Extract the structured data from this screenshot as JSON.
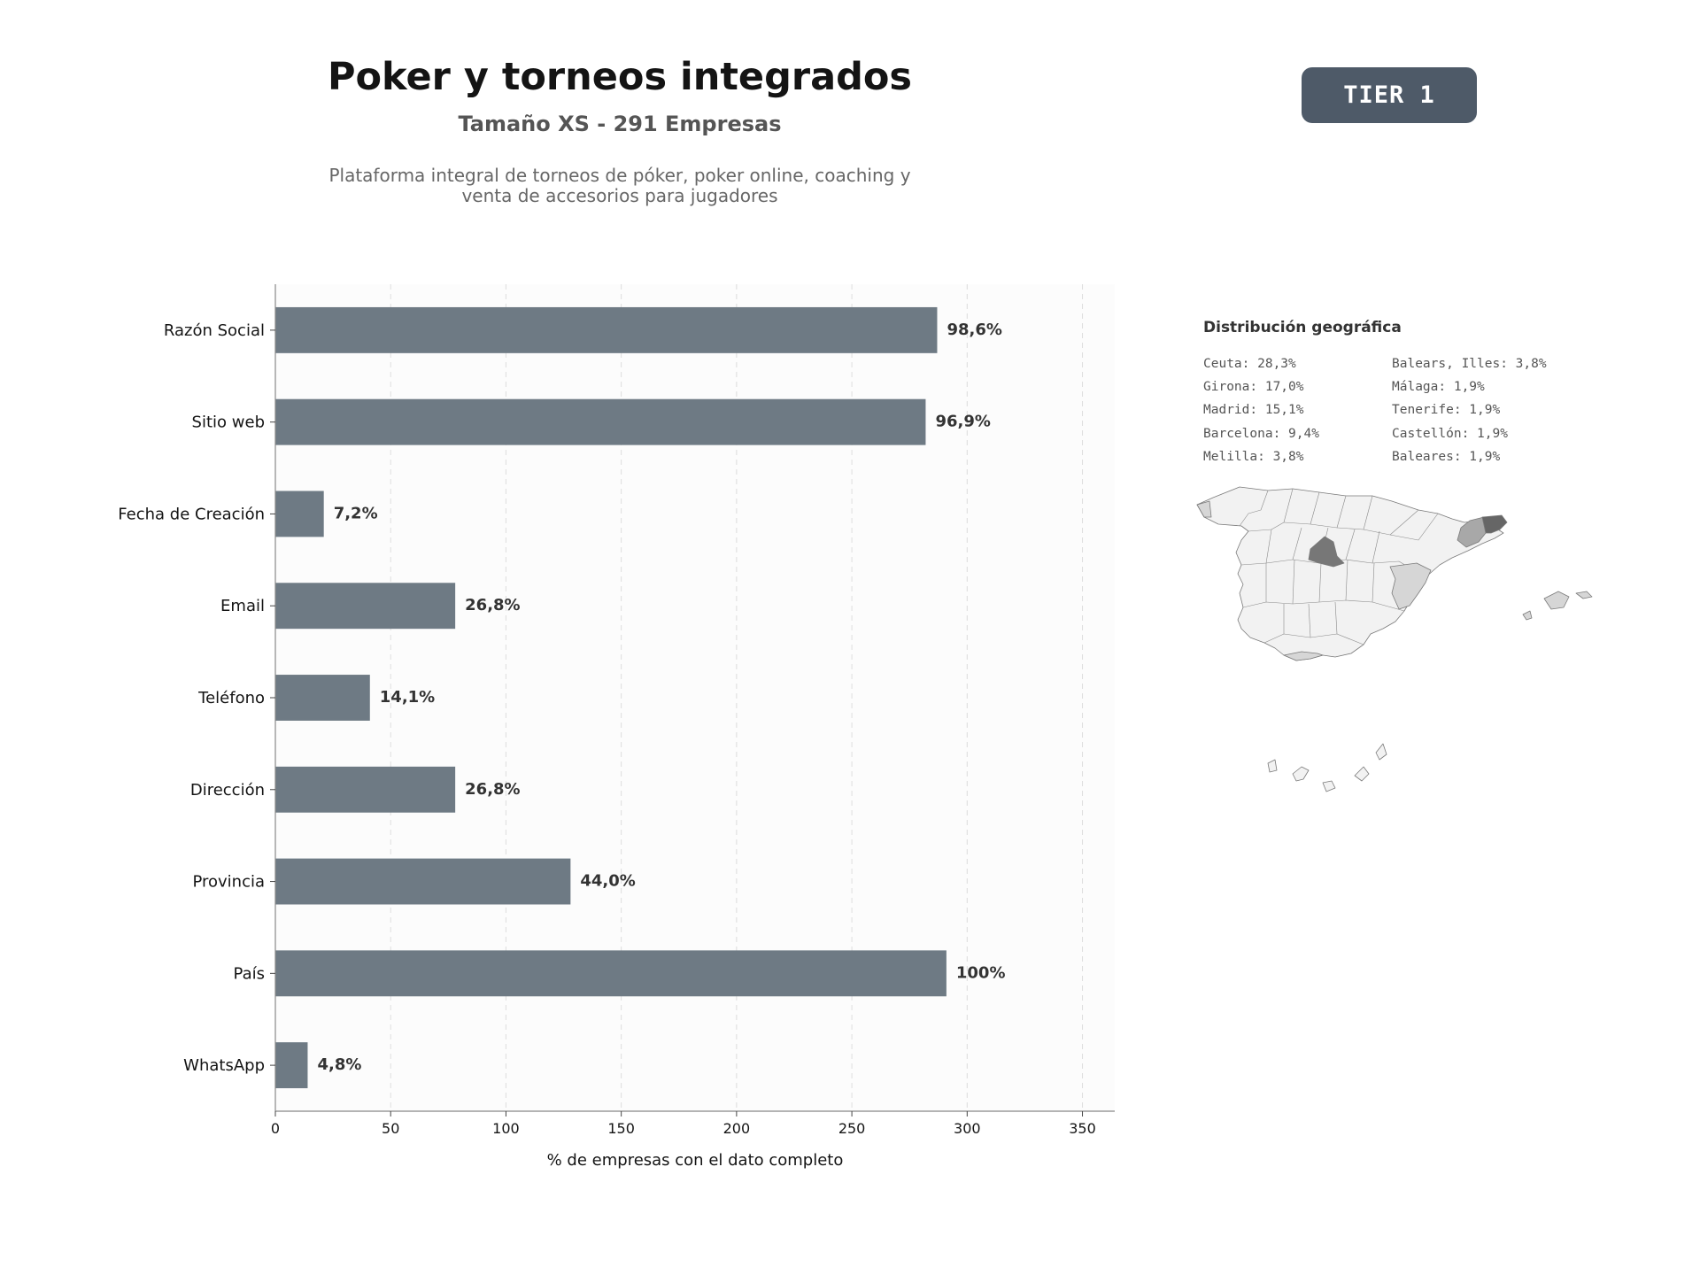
{
  "header": {
    "title": "Poker y torneos integrados",
    "subtitle": "Tamaño XS - 291 Empresas",
    "description_line1": "Plataforma integral de torneos de póker, poker online, coaching y",
    "description_line2": "venta de accesorios para jugadores",
    "tier_label": "TIER 1"
  },
  "chart_data": {
    "type": "bar",
    "orientation": "horizontal",
    "categories": [
      "Razón Social",
      "Sitio web",
      "Fecha de Creación",
      "Email",
      "Teléfono",
      "Dirección",
      "Provincia",
      "País",
      "WhatsApp"
    ],
    "values": [
      287,
      282,
      21,
      78,
      41,
      78,
      128,
      291,
      14
    ],
    "data_labels": [
      "98,6%",
      "96,9%",
      "7,2%",
      "26,8%",
      "14,1%",
      "26,8%",
      "44,0%",
      "100%",
      "4,8%"
    ],
    "xlabel": "% de empresas con el dato completo",
    "ylabel": "",
    "xlim": [
      0,
      364
    ],
    "xticks": [
      0,
      50,
      100,
      150,
      200,
      250,
      300,
      350
    ],
    "grid": "vertical dashed",
    "bar_color": "#6e7a84"
  },
  "geo": {
    "title": "Distribución geográfica",
    "col1": [
      "Ceuta: 28,3%",
      "Girona: 17,0%",
      "Madrid: 15,1%",
      "Barcelona: 9,4%",
      "Melilla: 3,8%"
    ],
    "col2": [
      "Balears, Illes: 3,8%",
      "Málaga: 1,9%",
      "Tenerife: 1,9%",
      "Castellón: 1,9%",
      "Baleares: 1,9%"
    ]
  },
  "colors": {
    "map_base": "#f2f2f2",
    "map_light": "#d6d6d6",
    "map_mid": "#a8a8a8",
    "map_dark": "#777777",
    "map_darkest": "#666666"
  }
}
